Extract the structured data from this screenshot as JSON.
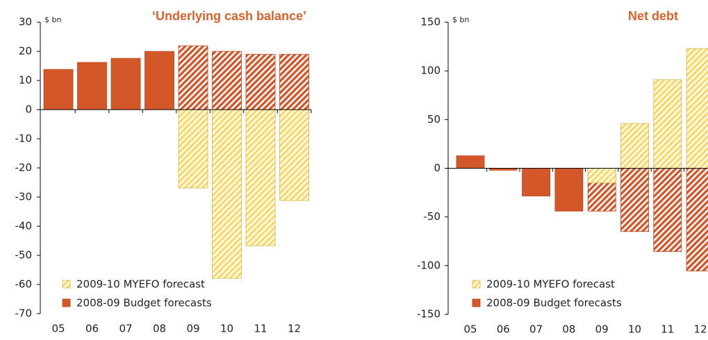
{
  "chart_data": [
    {
      "type": "bar",
      "title": "‘Underlying cash balance’",
      "y_label": "$ bn",
      "categories": [
        "05",
        "06",
        "07",
        "08",
        "09",
        "10",
        "11",
        "12"
      ],
      "series": [
        {
          "name": "2009-10 MYEFO forecast",
          "color": "#f5d76e",
          "values": [
            null,
            null,
            null,
            null,
            -26.9,
            -57.9,
            -46.7,
            -31.2
          ]
        },
        {
          "name": "2008-09 Budget forecasts",
          "color": "#d4572a",
          "values": [
            13.8,
            16.2,
            17.6,
            20,
            21.9,
            20,
            19,
            19
          ]
        }
      ],
      "ylim": [
        -70,
        30
      ],
      "yticks": [
        -70,
        -60,
        -50,
        -40,
        -30,
        -20,
        -10,
        0,
        10,
        20,
        30
      ]
    },
    {
      "type": "bar",
      "title": "Net debt",
      "y_label": "$ bn",
      "categories": [
        "05",
        "06",
        "07",
        "08",
        "09",
        "10",
        "11",
        "12"
      ],
      "series": [
        {
          "name": "2009-10 MYEFO forecast",
          "color": "#f5d76e",
          "values": [
            null,
            null,
            null,
            null,
            -15,
            46,
            91,
            123
          ]
        },
        {
          "name": "2008-09 Budget forecasts",
          "color": "#d4572a",
          "values": [
            12.8,
            -2,
            -28.5,
            -44,
            -44,
            -65,
            -85.5,
            -105.5
          ]
        }
      ],
      "ylim": [
        -150,
        150
      ],
      "yticks": [
        -150,
        -100,
        -50,
        0,
        50,
        100,
        150
      ]
    }
  ]
}
